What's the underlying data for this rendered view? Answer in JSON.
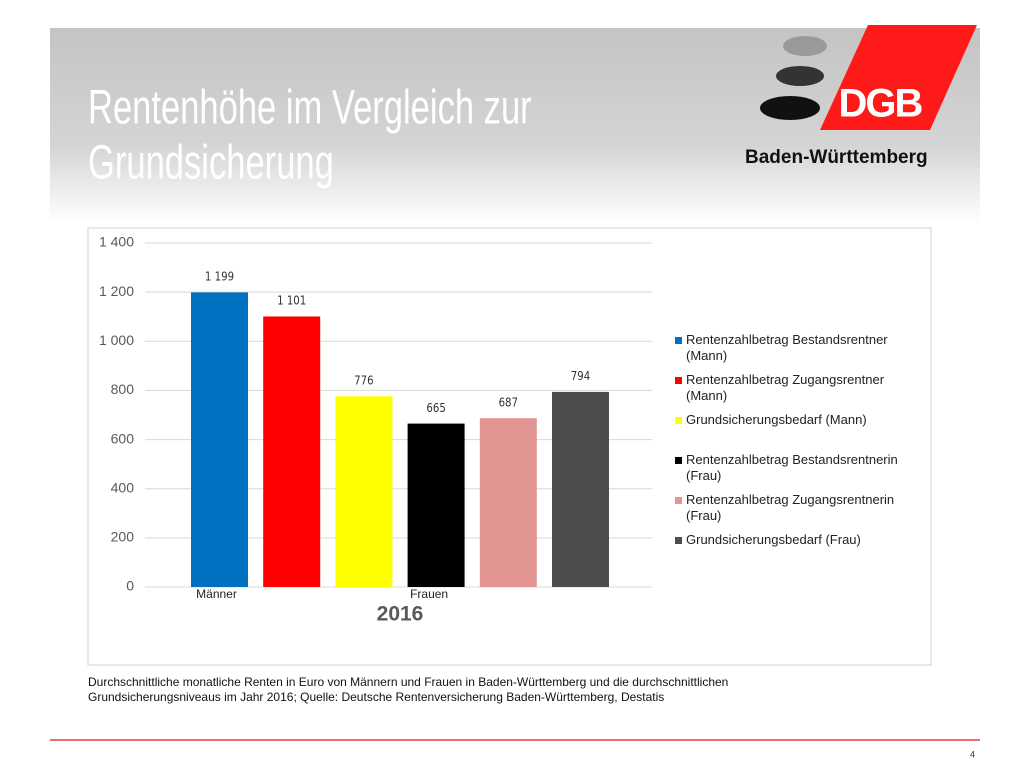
{
  "slide_title": [
    "Rentenhöhe im Vergleich zur",
    "Grundsicherung"
  ],
  "logo": {
    "text": "DGB",
    "region": "Baden-Württemberg"
  },
  "caption": "Durchschnittliche monatliche Renten in Euro von Männern und Frauen in Baden-Württemberg und die durchschnittlichen Grundsicherungsniveaus im Jahr 2016; Quelle: Deutsche Rentenversicherung Baden-Württemberg,  Destatis",
  "page_number": "4",
  "chart_data": {
    "type": "bar",
    "categories": [
      "2016"
    ],
    "annotations": [
      "Männer",
      "Frauen"
    ],
    "series": [
      {
        "name": "Rentenzahlbetrag Bestandsrentner (Mann)",
        "color": "#0070c0",
        "values": [
          1199
        ],
        "value_labels": [
          "1 199"
        ]
      },
      {
        "name": "Rentenzahlbetrag Zugangsrentner (Mann)",
        "color": "#ff0000",
        "values": [
          1101
        ],
        "value_labels": [
          "1 101"
        ]
      },
      {
        "name": "Grundsicherungsbedarf (Mann)",
        "color": "#ffff00",
        "values": [
          776
        ]
      },
      {
        "name": "Rentenzahlbetrag Bestandsrentnerin (Frau)",
        "color": "#000000",
        "values": [
          665
        ]
      },
      {
        "name": "Rentenzahlbetrag Zugangsrentnerin (Frau)",
        "color": "#e39594",
        "values": [
          687
        ]
      },
      {
        "name": "Grundsicherungsbedarf (Frau)",
        "color": "#4d4d4d",
        "values": [
          794
        ]
      }
    ],
    "ylim": [
      0,
      1400
    ],
    "yticks": [
      0,
      200,
      400,
      600,
      800,
      {
        "value": 1000,
        "label": "1 000"
      },
      {
        "value": 1200,
        "label": "1 200"
      },
      {
        "value": 1400,
        "label": "1 400"
      }
    ],
    "grid": true,
    "legend": "right"
  }
}
